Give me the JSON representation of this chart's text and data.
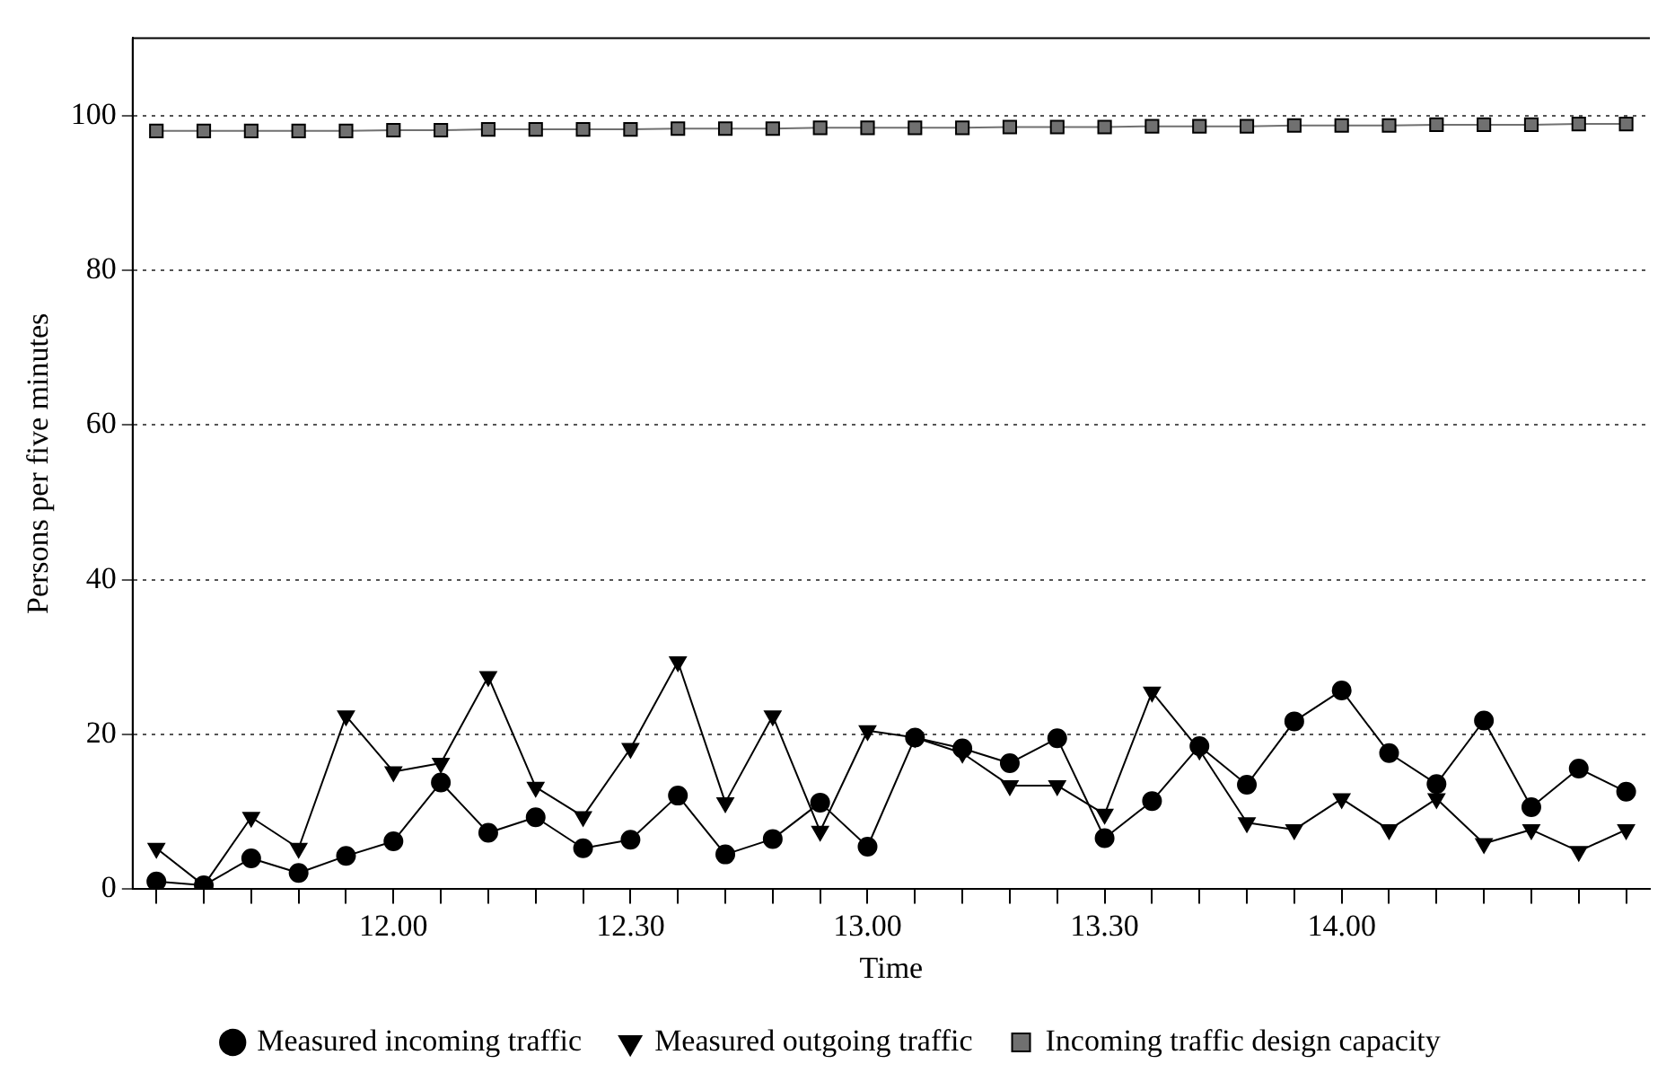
{
  "chart_data": {
    "type": "line",
    "xlabel": "Time",
    "ylabel": "Persons per five minutes",
    "categories": [
      null,
      null,
      null,
      null,
      null,
      "12.00",
      null,
      null,
      null,
      null,
      "12.30",
      null,
      null,
      null,
      null,
      "13.00",
      null,
      null,
      null,
      null,
      "13.30",
      null,
      null,
      null,
      null,
      "14.00",
      null,
      null,
      null,
      null,
      null,
      null
    ],
    "series": [
      {
        "name": "Measured incoming traffic",
        "color": "#000000",
        "marker": "circle",
        "values": [
          1.0,
          0.5,
          4.0,
          2.1,
          4.3,
          6.2,
          13.8,
          7.3,
          9.3,
          5.3,
          6.4,
          12.1,
          4.5,
          6.5,
          11.2,
          5.5,
          19.6,
          18.2,
          16.3,
          19.5,
          6.6,
          11.4,
          18.5,
          13.5,
          21.7,
          25.7,
          17.6,
          13.6,
          21.8,
          10.6,
          15.6,
          12.6
        ]
      },
      {
        "name": "Measured outgoing traffic",
        "color": "#000000",
        "marker": "triangle",
        "values": [
          5.3,
          0.5,
          9.3,
          5.3,
          22.4,
          15.2,
          16.3,
          27.5,
          13.2,
          9.4,
          18.2,
          29.4,
          11.2,
          22.4,
          7.5,
          20.5,
          19.6,
          17.6,
          13.4,
          13.4,
          9.7,
          25.5,
          18.0,
          8.6,
          7.7,
          11.7,
          7.7,
          11.7,
          5.9,
          7.7,
          4.9,
          7.7
        ]
      },
      {
        "name": "Incoming traffic design capacity",
        "color": "#707070",
        "marker": "square",
        "values": [
          98.0,
          98.0,
          98.0,
          98.0,
          98.0,
          98.1,
          98.1,
          98.2,
          98.2,
          98.2,
          98.2,
          98.3,
          98.3,
          98.3,
          98.4,
          98.4,
          98.4,
          98.4,
          98.5,
          98.5,
          98.5,
          98.6,
          98.6,
          98.6,
          98.7,
          98.7,
          98.7,
          98.8,
          98.8,
          98.8,
          98.9,
          98.9
        ]
      }
    ],
    "ylim": [
      0,
      110
    ],
    "yticks": [
      0,
      20,
      40,
      60,
      80,
      100
    ],
    "grid": "y",
    "legend": "bottom",
    "line_style": "solid"
  }
}
